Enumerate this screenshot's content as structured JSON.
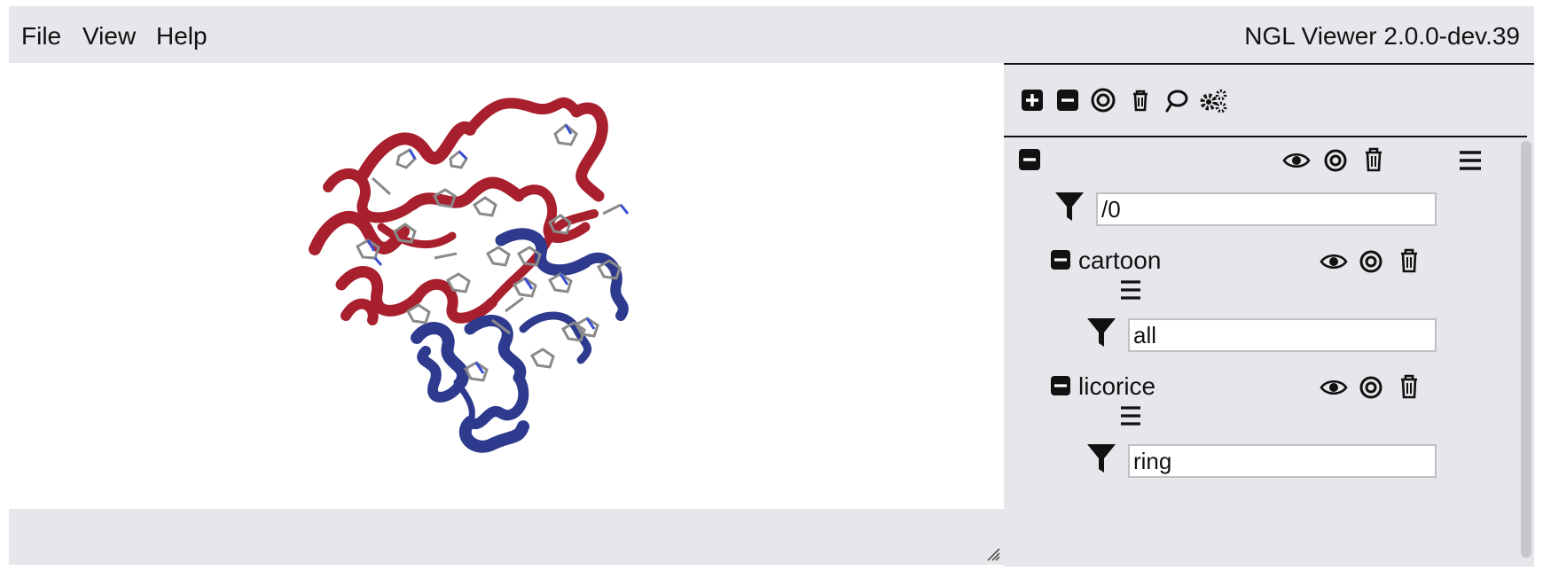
{
  "menu": {
    "items": [
      {
        "label": "File"
      },
      {
        "label": "View"
      },
      {
        "label": "Help"
      }
    ],
    "version": "NGL Viewer 2.0.0-dev.39"
  },
  "toolbar": {
    "buttons": [
      {
        "icon": "plus-square-icon"
      },
      {
        "icon": "minus-square-icon"
      },
      {
        "icon": "bullseye-icon"
      },
      {
        "icon": "trash-icon"
      },
      {
        "icon": "lasso-icon"
      },
      {
        "icon": "gears-icon"
      }
    ]
  },
  "component": {
    "filter": "/0",
    "representations": [
      {
        "name": "cartoon",
        "filter": "all"
      },
      {
        "name": "licorice",
        "filter": "ring"
      }
    ]
  },
  "colors": {
    "helix_red": "#a8202e",
    "helix_blue": "#2e3a8e",
    "stick_gray": "#8a8a8a",
    "stick_blue": "#3a4fd0",
    "panel_bg": "#e6e7eb"
  }
}
